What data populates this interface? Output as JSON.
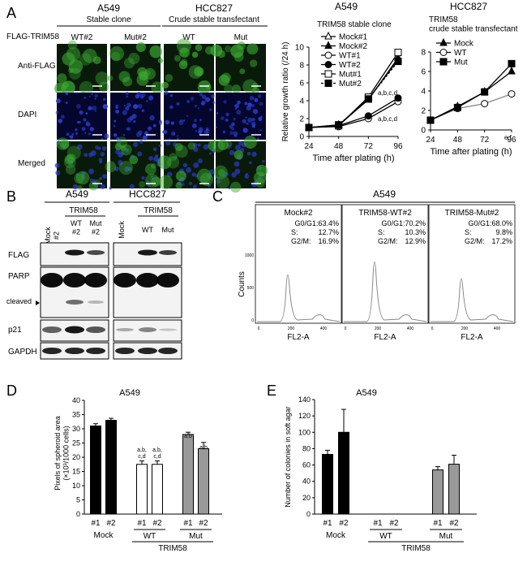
{
  "panels": {
    "A": {
      "letter": "A",
      "cell_lines": [
        "A549",
        "HCC827"
      ],
      "subtitles": [
        "Stable clone",
        "Crude stable transfectant"
      ],
      "row_header": "FLAG-TRIM58",
      "columns": [
        "WT#2",
        "Mut#2",
        "WT",
        "Mut"
      ],
      "rows": [
        "Anti-FLAG",
        "DAPI",
        "Merged"
      ]
    },
    "B": {
      "letter": "B",
      "cell_lines": [
        "A549",
        "HCC827"
      ],
      "group_label": "TRIM58",
      "lane_labels_a549": [
        "Mock\n#2",
        "WT\n#2",
        "Mut\n#2"
      ],
      "lane_labels_hcc": [
        "Mock",
        "WT",
        "Mut"
      ],
      "blots": [
        "FLAG",
        "PARP",
        "cleaved",
        "p21",
        "GAPDH"
      ]
    },
    "C": {
      "letter": "C",
      "title": "A549",
      "ylabel": "Counts",
      "xlabel": "FL2-A",
      "histograms": [
        {
          "name": "Mock#2",
          "g0g1": "G0/G1:63.4%",
          "s": "S:",
          "s_val": "12.7%",
          "g2m": "G2/M:",
          "g2m_val": "16.9%"
        },
        {
          "name": "TRIM58-WT#2",
          "g0g1": "G0/G1:70.2%",
          "s": "S:",
          "s_val": "10.3%",
          "g2m": "G2/M:",
          "g2m_val": "12.9%"
        },
        {
          "name": "TRIM58-Mut#2",
          "g0g1": "G0/G1:68.0%",
          "s": "S:",
          "s_val": "9.8%",
          "g2m": "G2/M:",
          "g2m_val": "17.2%"
        }
      ],
      "y_ticks": [
        "0",
        "500",
        "1000"
      ],
      "x_ticks": [
        "0",
        "200",
        "400"
      ]
    },
    "D": {
      "letter": "D",
      "group_labels": [
        "Mock",
        "WT",
        "Mut"
      ],
      "super_label": "TRIM58",
      "annotations": [
        "a,b,\nc,d",
        "a,b,\nc,d",
        "a,b",
        "a,b"
      ]
    },
    "E": {
      "letter": "E",
      "group_labels": [
        "Mock",
        "WT",
        "Mut"
      ],
      "super_label": "TRIM58"
    }
  },
  "chart_data": [
    {
      "type": "line",
      "id": "growth-a549",
      "title": "A549",
      "subtitle": "TRIM58 stable clone",
      "xlabel": "Time after plating (h)",
      "ylabel": "Relative growth ratio (/24 h)",
      "x": [
        24,
        48,
        72,
        96
      ],
      "xlim": [
        24,
        96
      ],
      "ylim": [
        0,
        10
      ],
      "yticks": [
        0,
        2,
        4,
        6,
        8,
        10
      ],
      "series": [
        {
          "name": "Mock#1",
          "marker": "open-triangle",
          "values": [
            1,
            1.3,
            4.1,
            8.8
          ]
        },
        {
          "name": "Mock#2",
          "marker": "filled-triangle",
          "values": [
            1,
            1.2,
            4.2,
            8.6
          ]
        },
        {
          "name": "WT#1",
          "marker": "open-circle",
          "values": [
            1,
            1.1,
            2.0,
            3.9
          ]
        },
        {
          "name": "WT#2",
          "marker": "filled-circle",
          "values": [
            1,
            1.2,
            2.3,
            4.3
          ]
        },
        {
          "name": "Mut#1",
          "marker": "open-square",
          "values": [
            1,
            1.2,
            4.4,
            9.4
          ]
        },
        {
          "name": "Mut#2",
          "marker": "filled-square",
          "values": [
            1,
            1.3,
            4.2,
            8.4
          ]
        }
      ],
      "annotations": [
        "a,b,c,d",
        "a,b,c,d"
      ]
    },
    {
      "type": "line",
      "id": "growth-hcc827",
      "title": "HCC827",
      "subtitle": "TRIM58\ncrude stable transfectant",
      "xlabel": "Time after plating (h)",
      "x": [
        24,
        48,
        72,
        96
      ],
      "xlim": [
        24,
        96
      ],
      "ylim": [
        0,
        8
      ],
      "yticks": [
        0,
        2,
        4,
        6,
        8
      ],
      "series": [
        {
          "name": "Mock",
          "marker": "filled-triangle",
          "values": [
            1,
            2.4,
            3.9,
            6.0
          ]
        },
        {
          "name": "WT",
          "marker": "open-circle",
          "values": [
            1,
            2.2,
            2.7,
            3.7
          ]
        },
        {
          "name": "Mut",
          "marker": "filled-square",
          "values": [
            1,
            2.3,
            3.9,
            6.8
          ]
        }
      ],
      "annotations": [
        "e,f"
      ]
    },
    {
      "type": "bar",
      "id": "spheroid",
      "title": "A549",
      "ylabel": "Pixels of spheroid area\n(×10³/1000 cells)",
      "categories": [
        "#1",
        "#2",
        "#1",
        "#2",
        "#1",
        "#2"
      ],
      "values": [
        31,
        33,
        17.5,
        17.5,
        28,
        23
      ],
      "errors": [
        0.8,
        0.7,
        1.2,
        1.2,
        0.8,
        2.2
      ],
      "colors": [
        "#000000",
        "#000000",
        "#ffffff",
        "#ffffff",
        "#999999",
        "#999999"
      ],
      "ylim": [
        0,
        40
      ],
      "yticks": [
        0,
        5,
        10,
        15,
        20,
        25,
        30,
        35,
        40
      ]
    },
    {
      "type": "bar",
      "id": "soft-agar",
      "title": "A549",
      "ylabel": "Number of colonies in soft agar",
      "categories": [
        "#1",
        "#2",
        "#1",
        "#2",
        "#1",
        "#2"
      ],
      "values": [
        73,
        100,
        0,
        0,
        54,
        61
      ],
      "errors": [
        5,
        28,
        0,
        0,
        4,
        11
      ],
      "colors": [
        "#000000",
        "#000000",
        "#ffffff",
        "#ffffff",
        "#999999",
        "#999999"
      ],
      "ylim": [
        0,
        140
      ],
      "yticks": [
        0,
        20,
        40,
        60,
        80,
        100,
        120,
        140
      ]
    }
  ]
}
